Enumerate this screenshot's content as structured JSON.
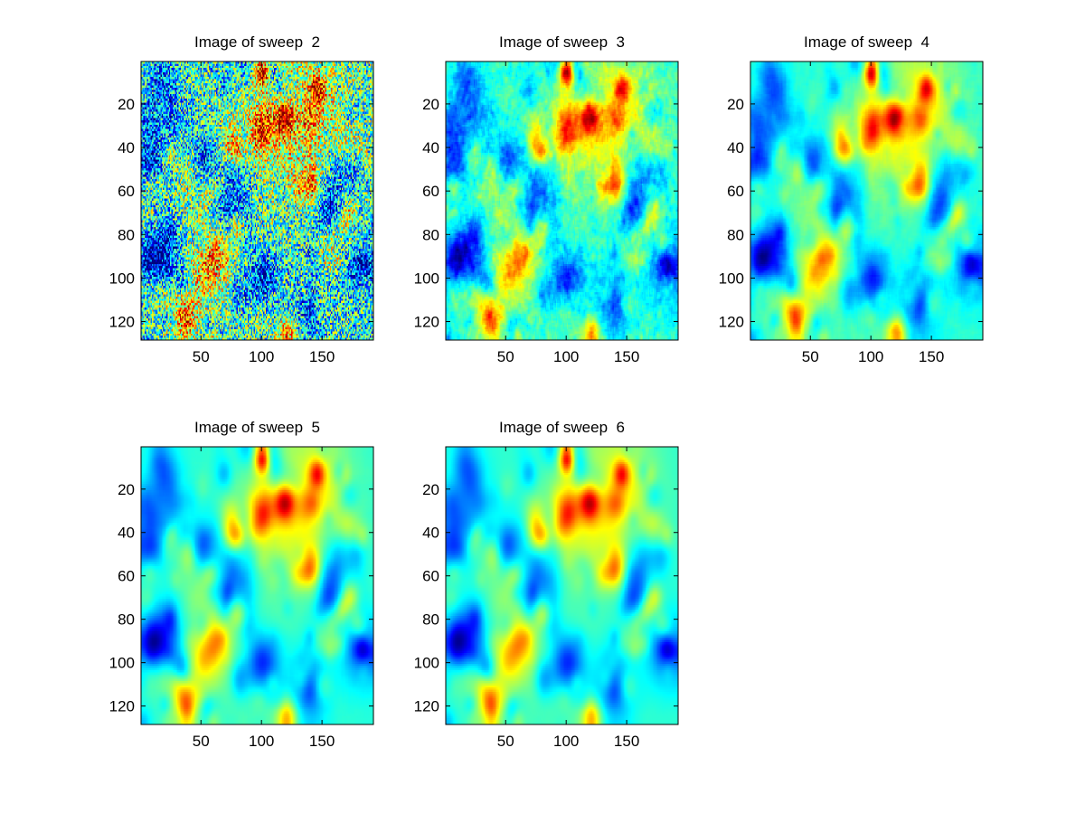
{
  "figure": {
    "background": "#ffffff"
  },
  "colormap": "jet",
  "chart_data": [
    {
      "type": "heatmap",
      "title": "Image of sweep  2",
      "xlabel": "",
      "ylabel": "",
      "xlim": [
        0.5,
        192.5
      ],
      "ylim": [
        0.5,
        128.5
      ],
      "y_direction": "reversed",
      "xticks": [
        50,
        100,
        150
      ],
      "yticks": [
        20,
        40,
        60,
        80,
        100,
        120
      ],
      "grid": false,
      "grid_size": [
        128,
        192
      ],
      "smoothing": 0,
      "noise": 0.9,
      "value_range": [
        0,
        1
      ]
    },
    {
      "type": "heatmap",
      "title": "Image of sweep  3",
      "xlabel": "",
      "ylabel": "",
      "xlim": [
        0.5,
        192.5
      ],
      "ylim": [
        0.5,
        128.5
      ],
      "y_direction": "reversed",
      "xticks": [
        50,
        100,
        150
      ],
      "yticks": [
        20,
        40,
        60,
        80,
        100,
        120
      ],
      "grid": false,
      "grid_size": [
        128,
        192
      ],
      "smoothing": 1,
      "noise": 0.45,
      "value_range": [
        0,
        1
      ]
    },
    {
      "type": "heatmap",
      "title": "Image of sweep  4",
      "xlabel": "",
      "ylabel": "",
      "xlim": [
        0.5,
        192.5
      ],
      "ylim": [
        0.5,
        128.5
      ],
      "y_direction": "reversed",
      "xticks": [
        50,
        100,
        150
      ],
      "yticks": [
        20,
        40,
        60,
        80,
        100,
        120
      ],
      "grid": false,
      "grid_size": [
        128,
        192
      ],
      "smoothing": 2,
      "noise": 0.25,
      "value_range": [
        0,
        1
      ]
    },
    {
      "type": "heatmap",
      "title": "Image of sweep  5",
      "xlabel": "",
      "ylabel": "",
      "xlim": [
        0.5,
        192.5
      ],
      "ylim": [
        0.5,
        128.5
      ],
      "y_direction": "reversed",
      "xticks": [
        50,
        100,
        150
      ],
      "yticks": [
        20,
        40,
        60,
        80,
        100,
        120
      ],
      "grid": false,
      "grid_size": [
        128,
        192
      ],
      "smoothing": 3,
      "noise": 0.1,
      "value_range": [
        0,
        1
      ]
    },
    {
      "type": "heatmap",
      "title": "Image of sweep  6",
      "xlabel": "",
      "ylabel": "",
      "xlim": [
        0.5,
        192.5
      ],
      "ylim": [
        0.5,
        128.5
      ],
      "y_direction": "reversed",
      "xticks": [
        50,
        100,
        150
      ],
      "yticks": [
        20,
        40,
        60,
        80,
        100,
        120
      ],
      "grid": false,
      "grid_size": [
        128,
        192
      ],
      "smoothing": 3,
      "noise": 0.05,
      "value_range": [
        0,
        1
      ]
    }
  ]
}
